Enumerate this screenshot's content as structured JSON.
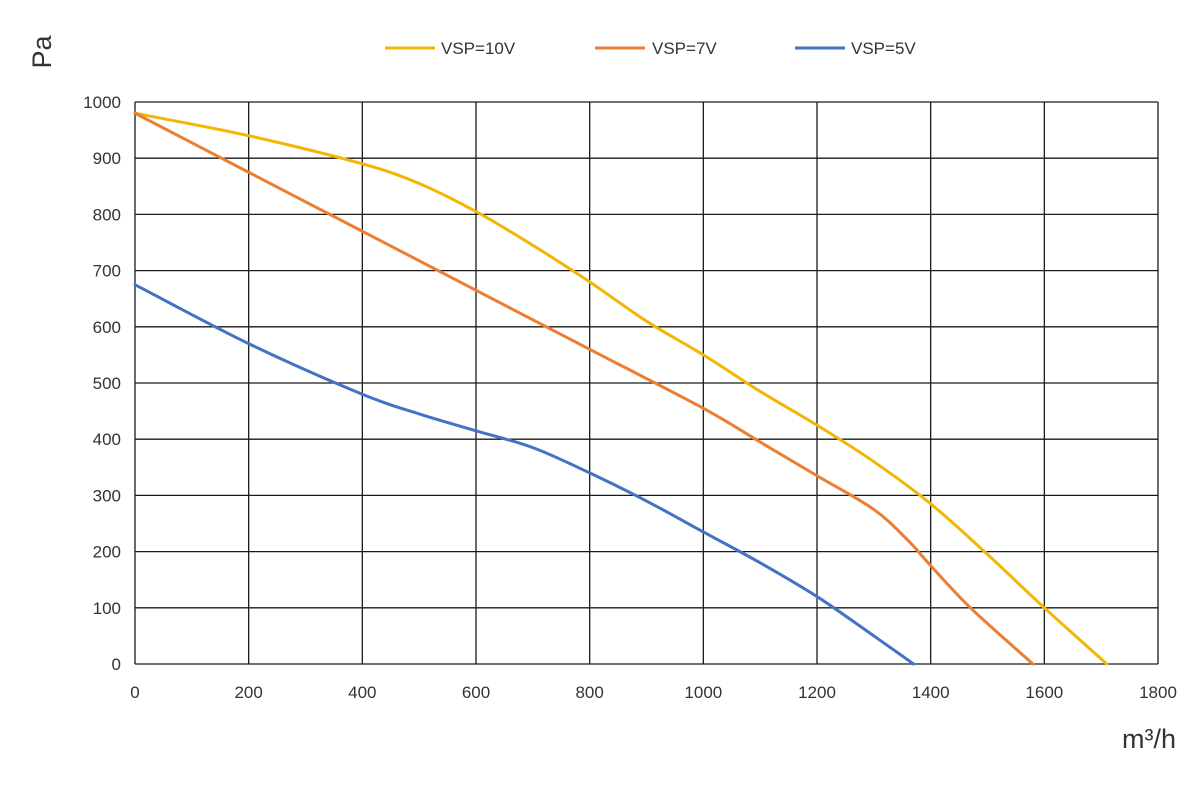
{
  "chart_data": {
    "type": "line",
    "title": "",
    "xlabel": "m³/h",
    "ylabel": "Pa",
    "xlim": [
      0,
      1800
    ],
    "ylim": [
      0,
      1000
    ],
    "x_ticks": [
      "0",
      "200",
      "400",
      "600",
      "800",
      "1000",
      "1200",
      "1400",
      "1600",
      "1800"
    ],
    "y_ticks": [
      "0",
      "100",
      "200",
      "300",
      "400",
      "500",
      "600",
      "700",
      "800",
      "900",
      "1000"
    ],
    "grid": true,
    "legend_position": "top",
    "series": [
      {
        "name": "VSP=10V",
        "color": "#F2B705",
        "points": [
          [
            0,
            980
          ],
          [
            200,
            940
          ],
          [
            400,
            890
          ],
          [
            500,
            855
          ],
          [
            600,
            805
          ],
          [
            700,
            745
          ],
          [
            800,
            680
          ],
          [
            900,
            610
          ],
          [
            1000,
            550
          ],
          [
            1100,
            485
          ],
          [
            1200,
            425
          ],
          [
            1300,
            360
          ],
          [
            1400,
            285
          ],
          [
            1500,
            195
          ],
          [
            1600,
            100
          ],
          [
            1710,
            0
          ]
        ]
      },
      {
        "name": "VSP=7V",
        "color": "#ED7D31",
        "points": [
          [
            0,
            980
          ],
          [
            200,
            875
          ],
          [
            400,
            770
          ],
          [
            600,
            665
          ],
          [
            800,
            560
          ],
          [
            1000,
            455
          ],
          [
            1100,
            395
          ],
          [
            1200,
            335
          ],
          [
            1300,
            275
          ],
          [
            1360,
            220
          ],
          [
            1400,
            175
          ],
          [
            1470,
            100
          ],
          [
            1580,
            0
          ]
        ]
      },
      {
        "name": "VSP=5V",
        "color": "#4472C4",
        "points": [
          [
            0,
            675
          ],
          [
            200,
            570
          ],
          [
            400,
            480
          ],
          [
            500,
            445
          ],
          [
            600,
            415
          ],
          [
            700,
            385
          ],
          [
            800,
            340
          ],
          [
            900,
            290
          ],
          [
            1000,
            235
          ],
          [
            1100,
            180
          ],
          [
            1200,
            120
          ],
          [
            1300,
            50
          ],
          [
            1370,
            0
          ]
        ]
      }
    ]
  }
}
